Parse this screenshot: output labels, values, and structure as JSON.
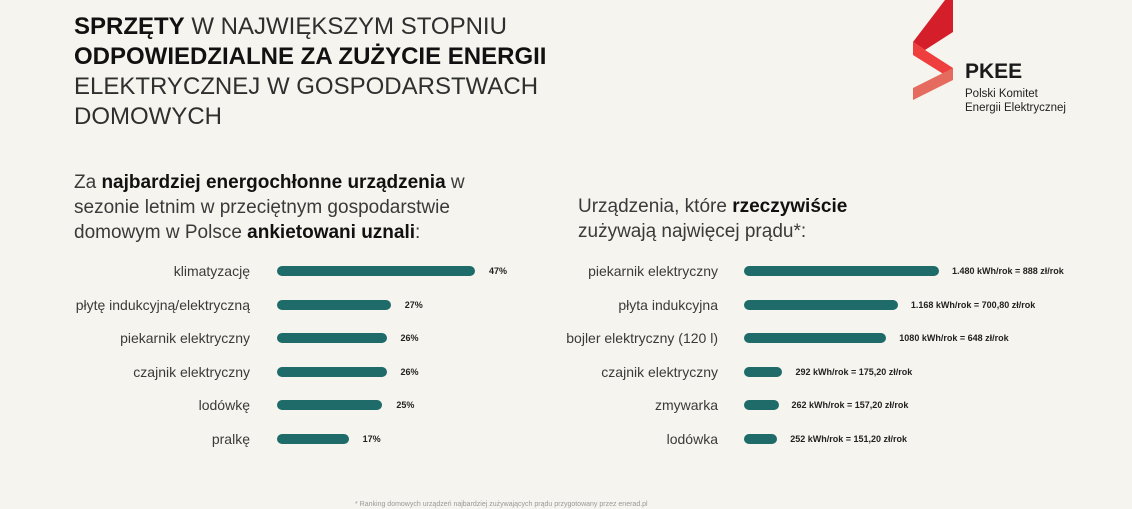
{
  "headline": {
    "bold1": "SPRZĘTY",
    "rest1": " W NAJWIĘKSZYM STOPNIU",
    "bold2": "ODPOWIEDZIALNE ZA ZUŻYCIE ENERGII",
    "rest2": "ELEKTRYCZNEJ W GOSPODARSTWACH DOMOWYCH"
  },
  "logo": {
    "name": "PKEE",
    "sub1": "Polski Komitet",
    "sub2": "Energii Elektrycznej",
    "colors": [
      "#d41f2b",
      "#ef3e3e",
      "#e56b5f"
    ]
  },
  "left_subhead": {
    "a": "Za ",
    "b": "najbardziej energochłonne urządzenia",
    "c": "w sezonie letnim w przeciętnym gospodarstwie domowym w Polsce ",
    "d": "ankietowani uznali",
    "e": ":"
  },
  "right_subhead": {
    "a": "Urządzenia, które ",
    "b": "rzeczywiście",
    "c": "zużywają najwięcej prądu*:"
  },
  "footnote": "* Ranking domowych urządzeń najbardziej zużywających prądu przygotowany przez enerad.pl",
  "colors": {
    "bar": "#1e6b6a",
    "background": "#f5f4ee"
  },
  "chart_data": [
    {
      "type": "bar",
      "orientation": "horizontal",
      "categories": [
        "klimatyzację",
        "płytę indukcyjną/elektryczną",
        "piekarnik elektryczny",
        "czajnik elektryczny",
        "lodówkę",
        "pralkę"
      ],
      "values": [
        47,
        27,
        26,
        26,
        25,
        17
      ],
      "labels": [
        "47%",
        "27%",
        "26%",
        "26%",
        "25%",
        "17%"
      ],
      "unit": "%"
    },
    {
      "type": "bar",
      "orientation": "horizontal",
      "categories": [
        "piekarnik elektryczny",
        "płyta indukcyjna",
        "bojler elektryczny (120 l)",
        "czajnik elektryczny",
        "zmywarka",
        "lodówka"
      ],
      "values": [
        1480,
        1168,
        1080,
        292,
        262,
        252
      ],
      "labels": [
        "1.480 kWh/rok = 888 zł/rok",
        "1.168 kWh/rok = 700,80 zł/rok",
        "1080 kWh/rok = 648 zł/rok",
        "292 kWh/rok = 175,20 zł/rok",
        "262 kWh/rok = 157,20 zł/rok",
        "252 kWh/rok = 151,20 zł/rok"
      ],
      "unit": "kWh/rok"
    }
  ]
}
